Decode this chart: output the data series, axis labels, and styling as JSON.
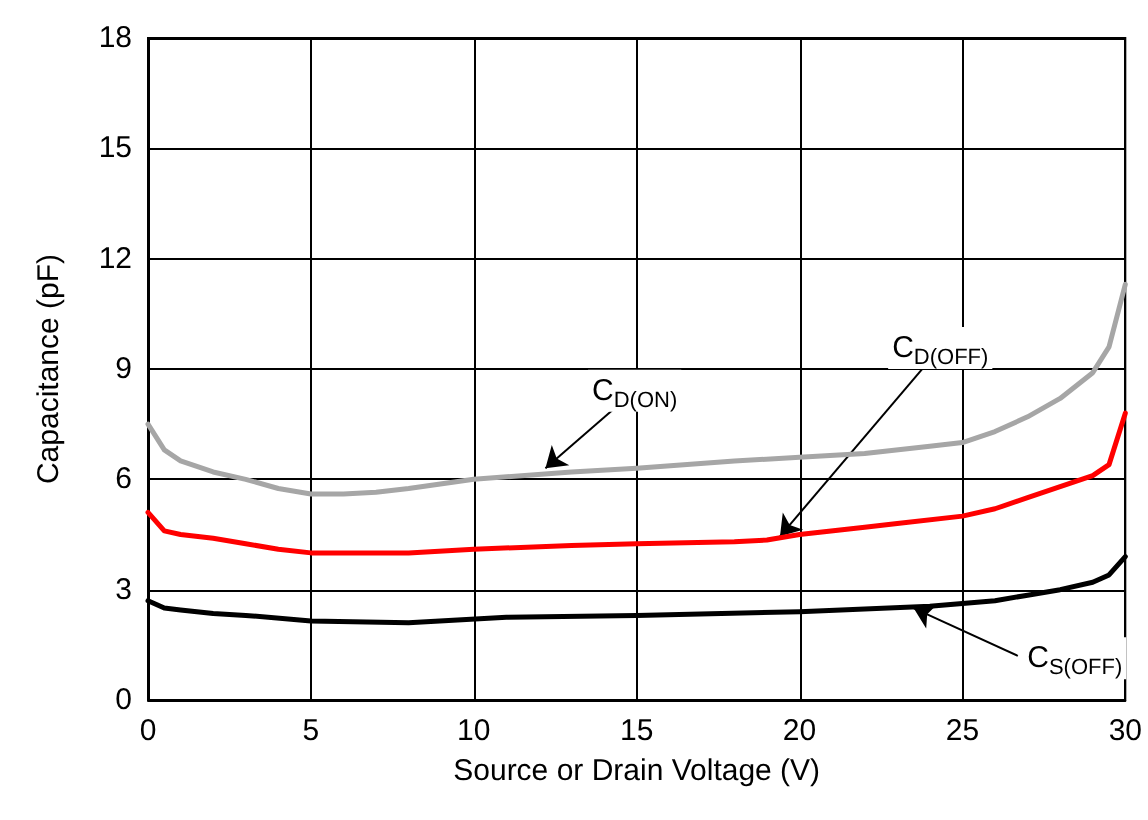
{
  "chart_data": {
    "type": "line",
    "xlabel": "Source or Drain Voltage (V)",
    "ylabel": "Capacitance (pF)",
    "xlim": [
      0,
      30
    ],
    "xticks": [
      0,
      5,
      10,
      15,
      20,
      25,
      30
    ],
    "ylim": [
      0,
      18
    ],
    "yticks": [
      0,
      3,
      6,
      9,
      12,
      15,
      18
    ],
    "grid": true,
    "marker": "none",
    "line_style": "solid",
    "series": [
      {
        "color": "#a6a6a6",
        "x": [
          0,
          0.5,
          1,
          2,
          3,
          4,
          5,
          6,
          7,
          8,
          10,
          13,
          15,
          18,
          20,
          22,
          24,
          25,
          26,
          27,
          28,
          29,
          29.5,
          30
        ],
        "values": [
          7.5,
          6.8,
          6.5,
          6.2,
          6.0,
          5.75,
          5.6,
          5.6,
          5.65,
          5.75,
          6.0,
          6.2,
          6.3,
          6.5,
          6.6,
          6.7,
          6.9,
          7.0,
          7.3,
          7.7,
          8.2,
          8.9,
          9.6,
          11.3
        ]
      },
      {
        "color": "#ff0000",
        "x": [
          0,
          0.5,
          1,
          2,
          3,
          4,
          5,
          6,
          8,
          10,
          13,
          15,
          18,
          19,
          20,
          22,
          23,
          25,
          26,
          27,
          28,
          29,
          29.5,
          30
        ],
        "values": [
          5.1,
          4.6,
          4.5,
          4.4,
          4.25,
          4.1,
          4.0,
          4.0,
          4.0,
          4.1,
          4.2,
          4.25,
          4.3,
          4.35,
          4.5,
          4.7,
          4.8,
          5.0,
          5.2,
          5.5,
          5.8,
          6.1,
          6.4,
          7.8
        ]
      },
      {
        "color": "#000000",
        "x": [
          0,
          0.5,
          1,
          2,
          3,
          5,
          8,
          11,
          15,
          20,
          24,
          26,
          27,
          28,
          29,
          29.5,
          30
        ],
        "values": [
          2.7,
          2.5,
          2.45,
          2.35,
          2.3,
          2.15,
          2.1,
          2.25,
          2.3,
          2.4,
          2.55,
          2.7,
          2.85,
          3.0,
          3.2,
          3.4,
          3.9
        ]
      }
    ],
    "annotations": [
      {
        "text": "C$_{D(ON)}$",
        "x": 12.2,
        "y": 6.3
      },
      {
        "text": "C$_{D(OFF)}$",
        "x": 19.4,
        "y": 4.45
      },
      {
        "text": "C$_{S(OFF)}$",
        "x": 23.5,
        "y": 2.5
      }
    ]
  }
}
